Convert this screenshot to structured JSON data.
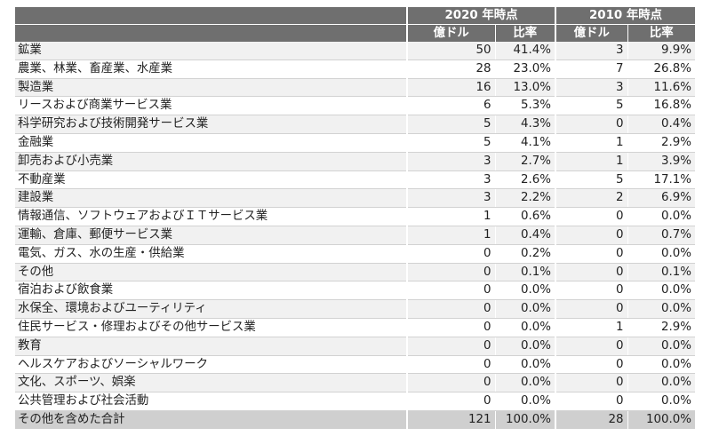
{
  "header": {
    "group_2020": "2020 年時点",
    "group_2010": "2010 年時点",
    "sub_amount_2020": "億ドル",
    "sub_ratio_2020": "比率",
    "sub_amount_2010": "億ドル",
    "sub_ratio_2010": "比率"
  },
  "rows": [
    {
      "label": "鉱業",
      "amount_2020": "50",
      "ratio_2020": "41.4%",
      "amount_2010": "3",
      "ratio_2010": "9.9%"
    },
    {
      "label": "農業、林業、畜産業、水産業",
      "amount_2020": "28",
      "ratio_2020": "23.0%",
      "amount_2010": "7",
      "ratio_2010": "26.8%"
    },
    {
      "label": "製造業",
      "amount_2020": "16",
      "ratio_2020": "13.0%",
      "amount_2010": "3",
      "ratio_2010": "11.6%"
    },
    {
      "label": "リースおよび商業サービス業",
      "amount_2020": "6",
      "ratio_2020": "5.3%",
      "amount_2010": "5",
      "ratio_2010": "16.8%"
    },
    {
      "label": "科学研究および技術開発サービス業",
      "amount_2020": "5",
      "ratio_2020": "4.3%",
      "amount_2010": "0",
      "ratio_2010": "0.4%"
    },
    {
      "label": "金融業",
      "amount_2020": "5",
      "ratio_2020": "4.1%",
      "amount_2010": "1",
      "ratio_2010": "2.9%"
    },
    {
      "label": "卸売および小売業",
      "amount_2020": "3",
      "ratio_2020": "2.7%",
      "amount_2010": "1",
      "ratio_2010": "3.9%"
    },
    {
      "label": "不動産業",
      "amount_2020": "3",
      "ratio_2020": "2.6%",
      "amount_2010": "5",
      "ratio_2010": "17.1%"
    },
    {
      "label": "建設業",
      "amount_2020": "3",
      "ratio_2020": "2.2%",
      "amount_2010": "2",
      "ratio_2010": "6.9%"
    },
    {
      "label": "情報通信、ソフトウェアおよびＩＴサービス業",
      "amount_2020": "1",
      "ratio_2020": "0.6%",
      "amount_2010": "0",
      "ratio_2010": "0.0%"
    },
    {
      "label": "運輸、倉庫、郵便サービス業",
      "amount_2020": "1",
      "ratio_2020": "0.4%",
      "amount_2010": "0",
      "ratio_2010": "0.7%"
    },
    {
      "label": "電気、ガス、水の生産・供給業",
      "amount_2020": "0",
      "ratio_2020": "0.2%",
      "amount_2010": "0",
      "ratio_2010": "0.0%"
    },
    {
      "label": "その他",
      "amount_2020": "0",
      "ratio_2020": "0.1%",
      "amount_2010": "0",
      "ratio_2010": "0.1%"
    },
    {
      "label": "宿泊および飲食業",
      "amount_2020": "0",
      "ratio_2020": "0.0%",
      "amount_2010": "0",
      "ratio_2010": "0.0%"
    },
    {
      "label": "水保全、環境およびユーティリティ",
      "amount_2020": "0",
      "ratio_2020": "0.0%",
      "amount_2010": "0",
      "ratio_2010": "0.0%"
    },
    {
      "label": "住民サービス・修理およびその他サービス業",
      "amount_2020": "0",
      "ratio_2020": "0.0%",
      "amount_2010": "1",
      "ratio_2010": "2.9%"
    },
    {
      "label": "教育",
      "amount_2020": "0",
      "ratio_2020": "0.0%",
      "amount_2010": "0",
      "ratio_2010": "0.0%"
    },
    {
      "label": "ヘルスケアおよびソーシャルワーク",
      "amount_2020": "0",
      "ratio_2020": "0.0%",
      "amount_2010": "0",
      "ratio_2010": "0.0%"
    },
    {
      "label": "文化、スポーツ、娯楽",
      "amount_2020": "0",
      "ratio_2020": "0.0%",
      "amount_2010": "0",
      "ratio_2010": "0.0%"
    },
    {
      "label": "公共管理および社会活動",
      "amount_2020": "0",
      "ratio_2020": "0.0%",
      "amount_2010": "0",
      "ratio_2010": "0.0%"
    },
    {
      "label": "その他を含めた合計",
      "amount_2020": "121",
      "ratio_2020": "100.0%",
      "amount_2010": "28",
      "ratio_2010": "100.0%"
    }
  ]
}
